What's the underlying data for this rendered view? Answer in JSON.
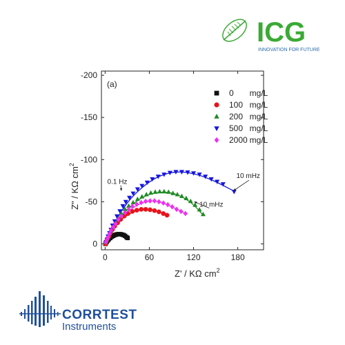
{
  "logos": {
    "icg": {
      "name": "ICG",
      "tagline": "INNOVATION FOR FUTURE",
      "color": "#3aaa35",
      "tagline_color": "#2b6cb0"
    },
    "corrtest": {
      "line1": "CORRTEST",
      "line2": "Instruments",
      "color": "#1f4f9c"
    }
  },
  "chart_data": {
    "type": "scatter",
    "panel_label": "(a)",
    "xlabel": "Z' / KΩ cm",
    "xlabel_sup": "2",
    "ylabel": "Z\" / KΩ cm",
    "ylabel_sup": "2",
    "xlim": [
      -5,
      215
    ],
    "ylim": [
      7,
      -205
    ],
    "x_ticks": [
      0,
      60,
      120,
      180
    ],
    "y_ticks": [
      0,
      -50,
      -100,
      -150,
      -200
    ],
    "legend_position": "top-right",
    "grid": false,
    "series": [
      {
        "name": "0",
        "unit": "mg/L",
        "marker": "square",
        "color": "#111111",
        "x": [
          0.5,
          2,
          3.5,
          5,
          7,
          9,
          11,
          13,
          15,
          17,
          19,
          21,
          23,
          25,
          27,
          29,
          30.5
        ],
        "y": [
          0,
          -2,
          -4,
          -5.5,
          -7,
          -8.5,
          -9.5,
          -10.5,
          -11,
          -11.5,
          -11.5,
          -11.5,
          -11,
          -10.5,
          -9.5,
          -8,
          -7
        ],
        "fit_x": [],
        "fit_y": []
      },
      {
        "name": "100",
        "unit": "mg/L",
        "marker": "circle",
        "color": "#e8131b",
        "x": [
          0.5,
          1.5,
          3,
          5,
          7,
          10,
          13,
          17,
          21,
          26,
          31,
          37,
          43,
          49,
          55,
          61,
          67,
          73,
          79,
          84
        ],
        "y": [
          0,
          -3,
          -6,
          -9,
          -13,
          -17,
          -21,
          -25,
          -29,
          -33,
          -36,
          -38.5,
          -40,
          -41,
          -41,
          -40.5,
          -39.5,
          -38,
          -36,
          -34
        ],
        "fit_x": [
          0,
          3,
          7,
          12,
          18,
          25,
          32,
          40,
          48,
          56,
          64,
          72,
          80,
          86
        ],
        "fit_y": [
          0,
          -6,
          -12,
          -19,
          -25,
          -31,
          -35,
          -38.5,
          -40.5,
          -41,
          -40.5,
          -38.5,
          -35.5,
          -33
        ]
      },
      {
        "name": "200",
        "unit": "mg/L",
        "marker": "triangle-up",
        "color": "#1f8b24",
        "x": [
          1,
          2.5,
          4,
          6,
          8,
          11,
          14,
          18,
          22,
          27,
          32,
          38,
          44,
          50,
          56,
          62,
          68,
          74,
          80,
          86,
          92,
          98,
          104,
          110,
          116,
          122,
          128,
          133
        ],
        "y": [
          -2,
          -5,
          -8,
          -12,
          -16,
          -21,
          -26,
          -31,
          -36,
          -41,
          -45,
          -49,
          -53,
          -56,
          -58.5,
          -60.5,
          -61.5,
          -62,
          -62,
          -61.5,
          -60,
          -58.5,
          -56.5,
          -54,
          -50.5,
          -46,
          -40.5,
          -35
        ],
        "fit_x": [
          0,
          4,
          9,
          15,
          22,
          30,
          39,
          48,
          58,
          68,
          78,
          88,
          98,
          108,
          118,
          126,
          132
        ],
        "fit_y": [
          0,
          -9,
          -17,
          -25,
          -33,
          -41,
          -48,
          -54,
          -58,
          -60.5,
          -61.5,
          -61,
          -58.5,
          -54,
          -48,
          -41,
          -35
        ]
      },
      {
        "name": "500",
        "unit": "mg/L",
        "marker": "triangle-down",
        "color": "#1515e0",
        "x": [
          1,
          2.5,
          4,
          6,
          8,
          10,
          13,
          16,
          20,
          24,
          28,
          33,
          38,
          44,
          50,
          57,
          64,
          72,
          80,
          88,
          96,
          104,
          112,
          120,
          128,
          136,
          144,
          152,
          160,
          175
        ],
        "y": [
          -2,
          -5,
          -9,
          -13,
          -17,
          -22,
          -27,
          -33,
          -39,
          -45,
          -50,
          -55,
          -60,
          -65,
          -69,
          -73,
          -77,
          -80,
          -82.5,
          -84.5,
          -85.5,
          -85.5,
          -85,
          -84,
          -82.5,
          -80,
          -77,
          -74,
          -71,
          -62
        ],
        "fit_x": [
          0,
          5,
          11,
          18,
          26,
          35,
          45,
          56,
          68,
          80,
          92,
          104,
          116,
          128,
          140,
          152,
          164,
          174
        ],
        "fit_y": [
          0,
          -11,
          -22,
          -33,
          -44,
          -54,
          -63,
          -71,
          -78,
          -82.5,
          -85,
          -85.5,
          -84,
          -81.5,
          -77.5,
          -73,
          -67.5,
          -63
        ]
      },
      {
        "name": "2000",
        "unit": "mg/L",
        "marker": "diamond",
        "color": "#ee30ee",
        "x": [
          1,
          2.5,
          4,
          6,
          8,
          11,
          14,
          18,
          22,
          27,
          32,
          37,
          43,
          49,
          55,
          61,
          67,
          73,
          79,
          85,
          91,
          97,
          103,
          109
        ],
        "y": [
          -2,
          -5,
          -8,
          -12,
          -16,
          -20,
          -24,
          -29,
          -33,
          -37,
          -41,
          -44.5,
          -47,
          -49,
          -50.5,
          -51,
          -51,
          -50,
          -48.5,
          -46.5,
          -44,
          -41,
          -38.5,
          -36
        ],
        "fit_x": [
          0,
          4,
          9,
          15,
          22,
          30,
          38,
          46,
          54,
          62,
          70,
          78,
          86,
          94,
          102,
          110
        ],
        "fit_y": [
          0,
          -8,
          -16,
          -24,
          -31,
          -37.5,
          -43,
          -47,
          -49.5,
          -51,
          -50.5,
          -48.5,
          -46,
          -42.5,
          -39,
          -35
        ]
      }
    ],
    "annotations": [
      {
        "text": "0.1 Hz",
        "x": 10,
        "y": -72,
        "arrow_to": [
          22,
          -63
        ]
      },
      {
        "text": "10 mHz",
        "x": 130,
        "y": -45,
        "arrow_to": [
          121,
          -50
        ]
      },
      {
        "text": "10 mHz",
        "x": 184,
        "y": -78,
        "arrow_to": [
          174,
          -63
        ]
      }
    ]
  }
}
